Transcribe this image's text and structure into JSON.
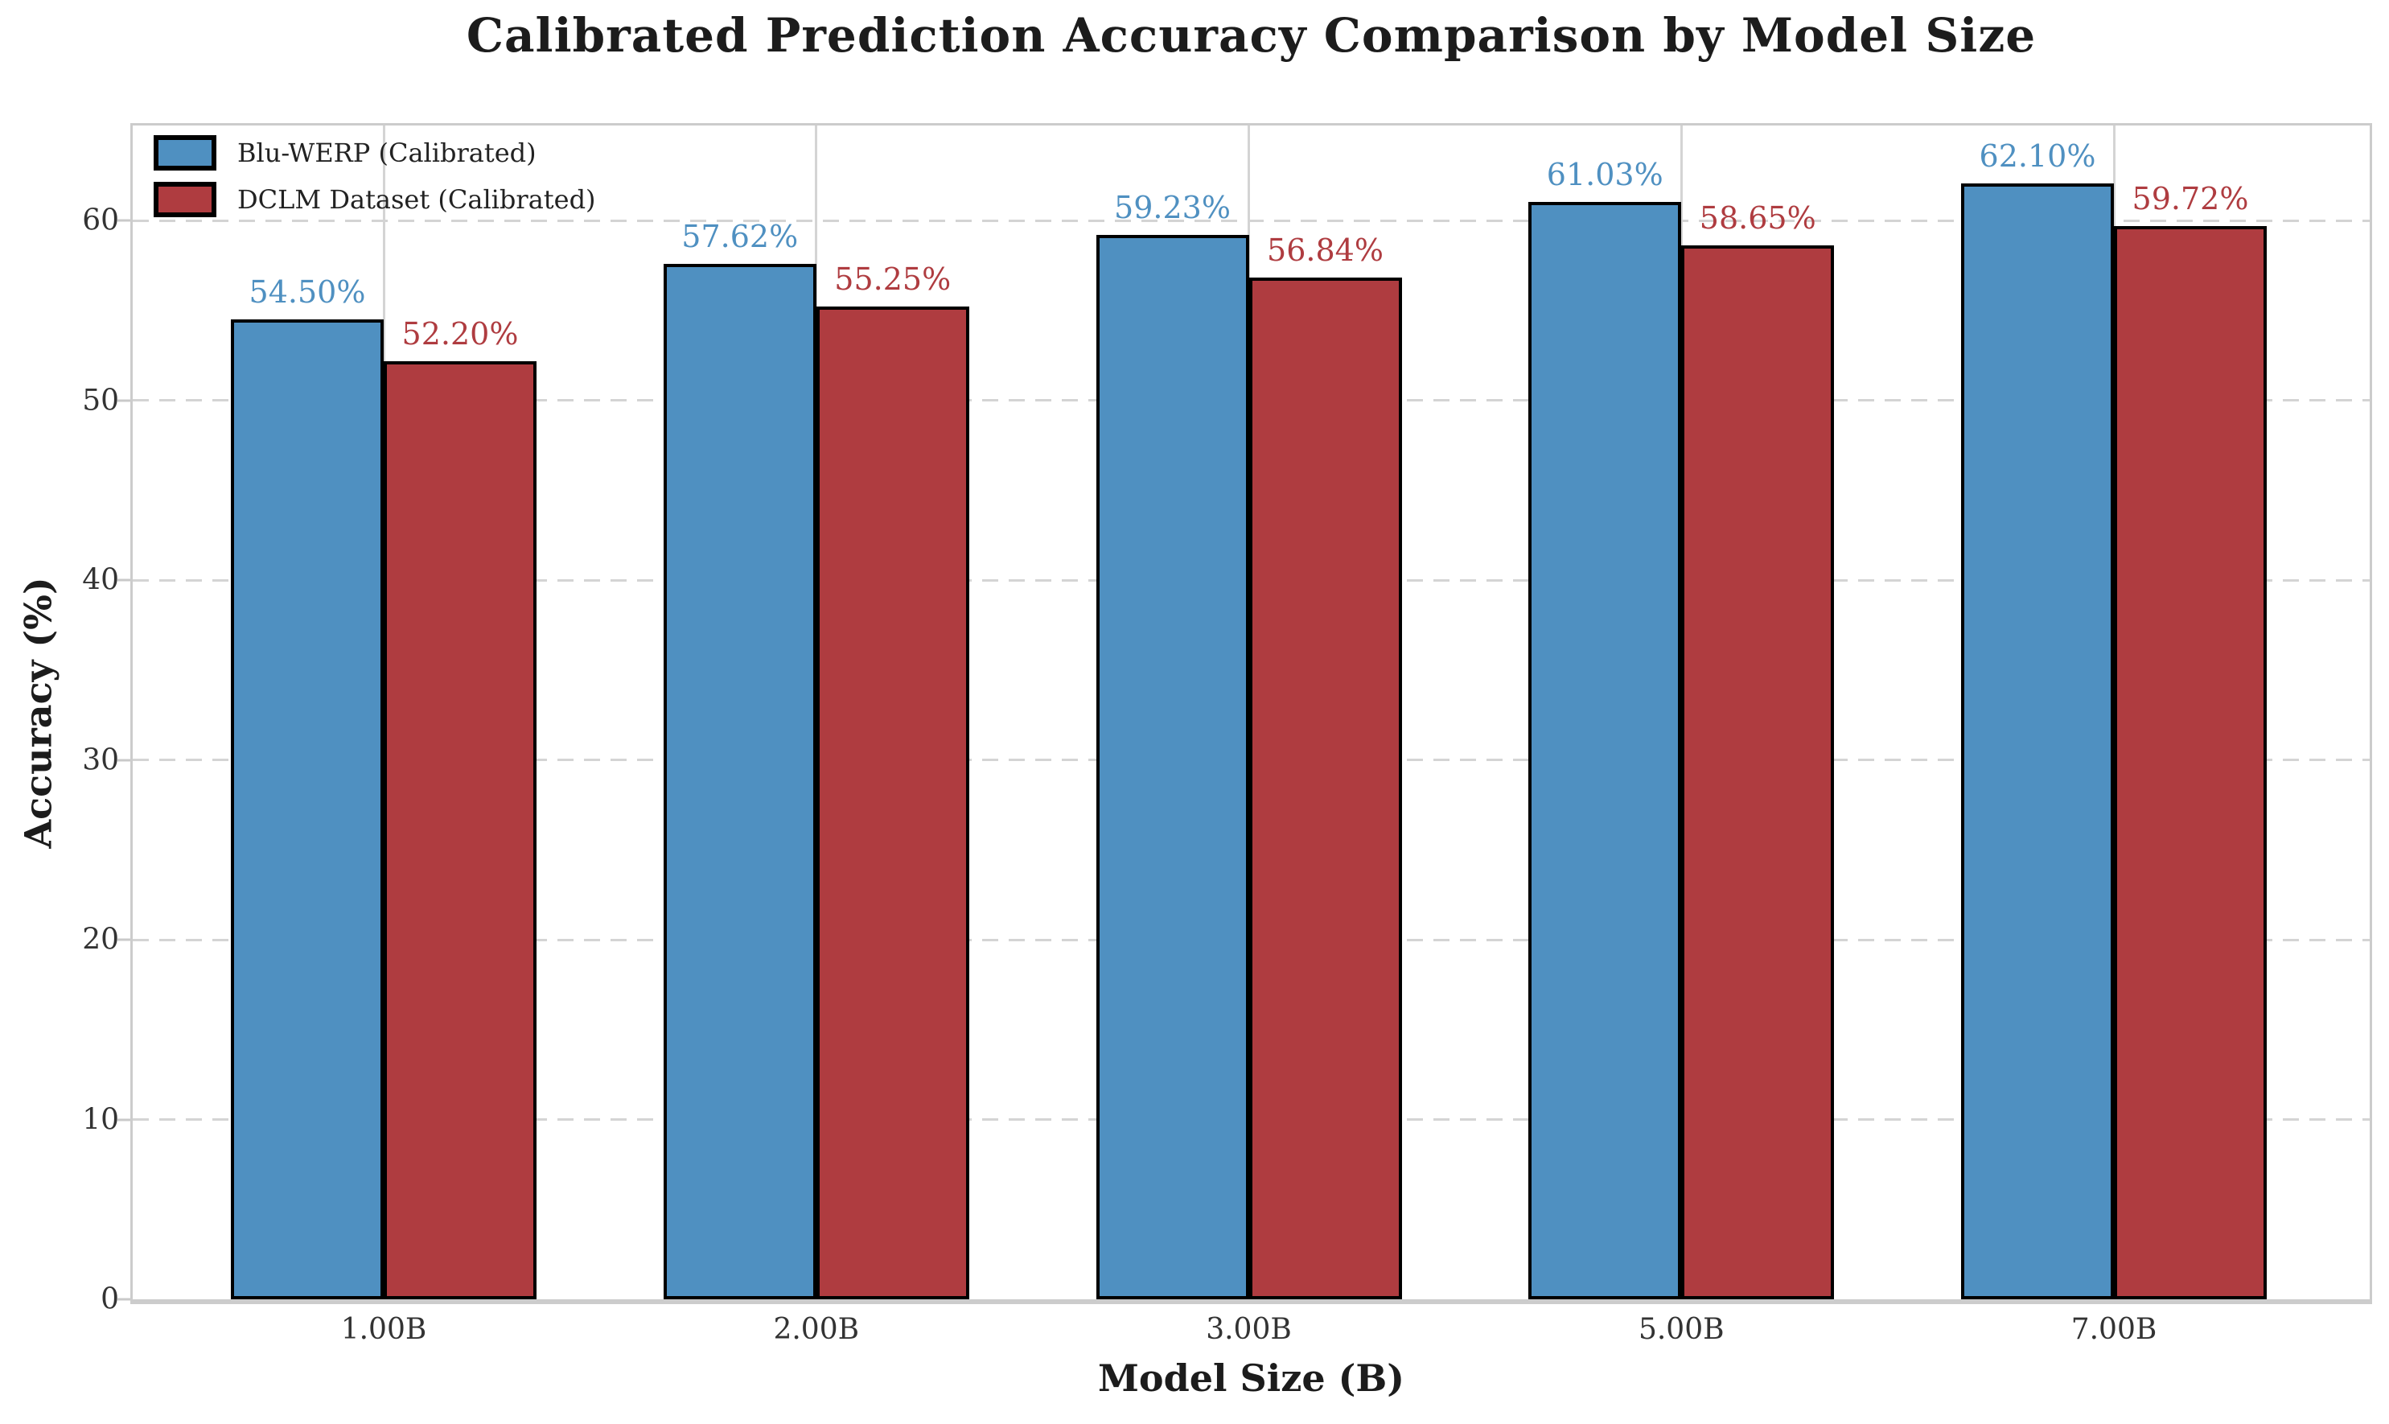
{
  "chart_data": {
    "type": "bar",
    "title": "Calibrated Prediction Accuracy Comparison by Model Size",
    "xlabel": "Model Size (B)",
    "ylabel": "Accuracy (%)",
    "categories": [
      "1.00B",
      "2.00B",
      "3.00B",
      "5.00B",
      "7.00B"
    ],
    "series": [
      {
        "name": "Blu-WERP (Calibrated)",
        "color": "#4F90C1",
        "values": [
          54.5,
          57.62,
          59.23,
          61.03,
          62.1
        ],
        "data_labels": [
          "54.50%",
          "57.62%",
          "59.23%",
          "61.03%",
          "62.10%"
        ]
      },
      {
        "name": "DCLM Dataset (Calibrated)",
        "color": "#AF3C40",
        "values": [
          52.2,
          55.25,
          56.84,
          58.65,
          59.72
        ],
        "data_labels": [
          "52.20%",
          "55.25%",
          "56.84%",
          "58.65%",
          "59.72%"
        ]
      }
    ],
    "yticks": [
      0,
      10,
      20,
      30,
      40,
      50,
      60
    ],
    "ylim": [
      0,
      65.3
    ],
    "bar_edge_color": "#000000",
    "grid": {
      "horizontal_style": "dashed",
      "vertical_style": "solid",
      "color": "#d4d4d4"
    },
    "legend_position": "upper-left"
  }
}
